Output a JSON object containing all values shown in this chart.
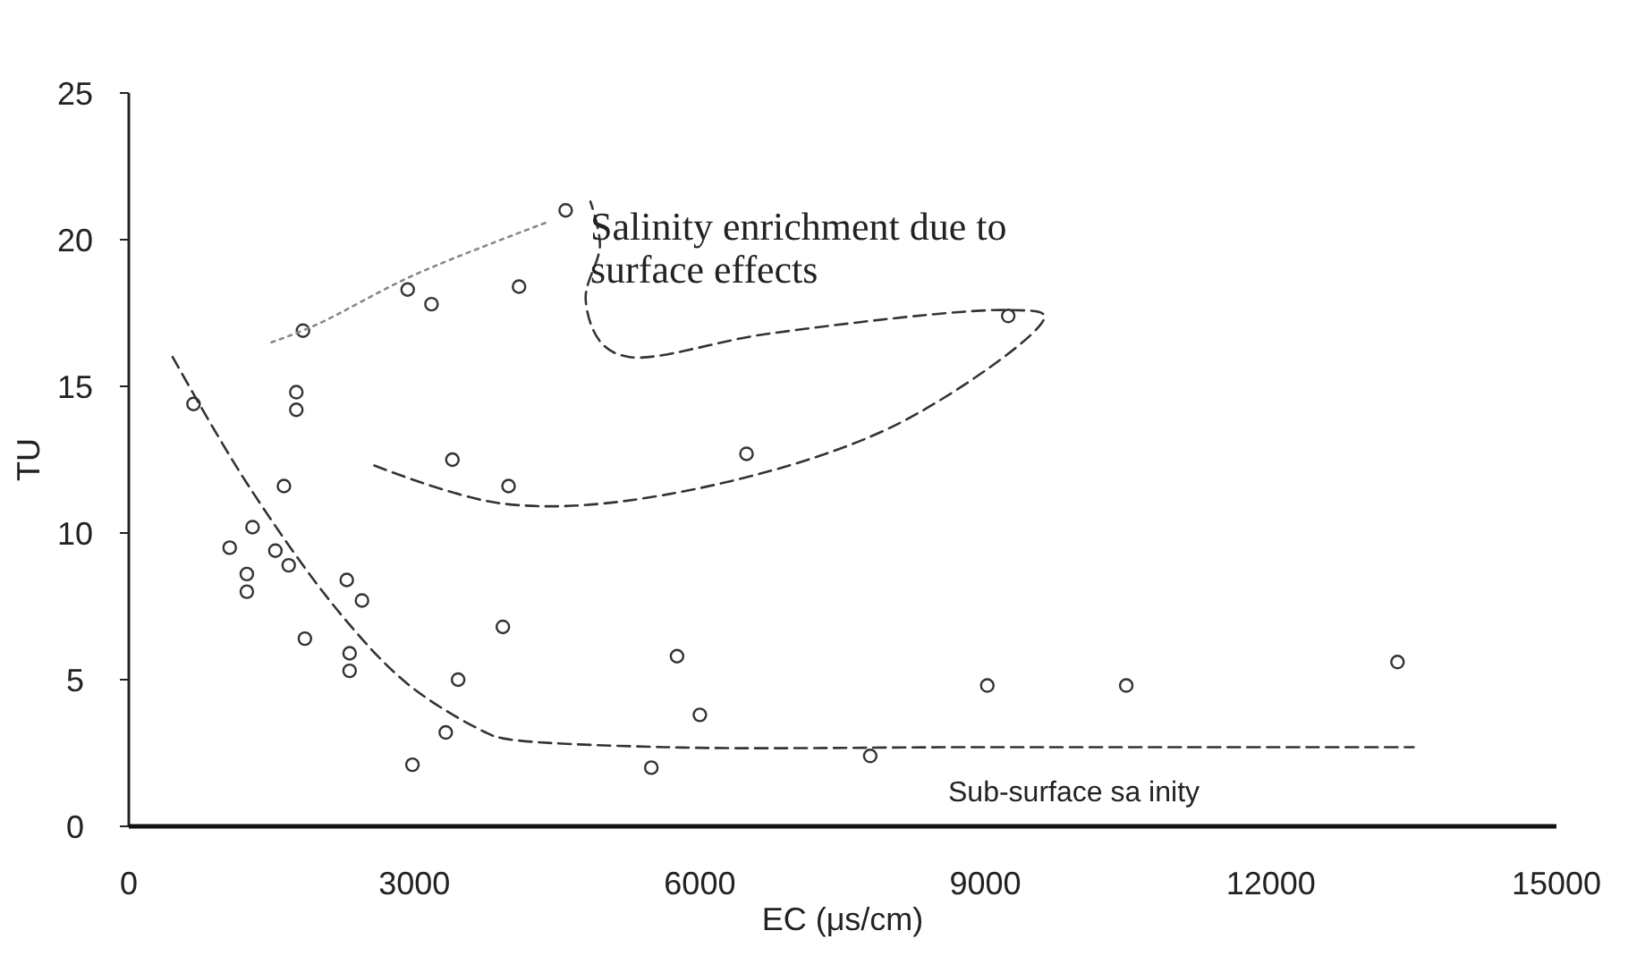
{
  "chart_data": {
    "type": "scatter",
    "xlabel": "EC (μs/cm)",
    "ylabel": "TU",
    "xlim": [
      0,
      15000
    ],
    "xticks": [
      0,
      3000,
      6000,
      9000,
      12000,
      15000
    ],
    "ylim": [
      0,
      25
    ],
    "yticks": [
      0,
      5,
      10,
      15,
      20,
      25
    ],
    "grid": false,
    "series": [
      {
        "marker": "circle",
        "color": "#333333",
        "x": [
          4590,
          2930,
          3180,
          4100,
          1830,
          1760,
          1760,
          3400,
          3990,
          6490,
          9240,
          680,
          1630,
          1300,
          1060,
          1540,
          1680,
          1240,
          1240,
          2290,
          2450,
          1850,
          2320,
          2320,
          3930,
          3460,
          3330,
          2980,
          5760,
          6000,
          5490,
          9020,
          10480,
          13330,
          7790
        ],
        "values": [
          21.0,
          18.3,
          17.8,
          18.4,
          16.9,
          14.8,
          14.2,
          12.5,
          11.6,
          12.7,
          17.4,
          14.4,
          11.6,
          10.2,
          9.5,
          9.4,
          8.9,
          8.6,
          8.0,
          8.4,
          7.7,
          6.4,
          5.9,
          5.3,
          6.8,
          5.0,
          3.2,
          2.1,
          5.8,
          3.8,
          2.0,
          4.8,
          4.8,
          5.6,
          2.4
        ]
      },
      {
        "type": "line",
        "color": "#333333",
        "line_style": "dashed",
        "x": [
          460,
          1240,
          2210,
          2950,
          3750,
          3930,
          5630,
          9000,
          13500
        ],
        "values": [
          16.0,
          11.7,
          7.3,
          4.8,
          3.2,
          3.0,
          2.7,
          2.7,
          2.7
        ]
      },
      {
        "type": "line",
        "color": "#333333",
        "line_style": "dashed",
        "x": [
          2580,
          3930,
          5630,
          8070,
          9620,
          9240,
          6730,
          5260,
          4960,
          4800,
          4950,
          4850
        ],
        "values": [
          12.3,
          11.0,
          11.3,
          13.7,
          17.4,
          17.6,
          16.8,
          16.0,
          16.5,
          18.0,
          19.8,
          21.3
        ]
      },
      {
        "type": "line",
        "color": "#888888",
        "line_style": "dotted",
        "x": [
          1500,
          1970,
          3000,
          4400
        ],
        "values": [
          16.5,
          17.1,
          18.8,
          20.6
        ]
      }
    ],
    "annotations": [
      "Salinity enrichment due to\nsurface effects",
      "Sub-surface sa inity"
    ]
  }
}
